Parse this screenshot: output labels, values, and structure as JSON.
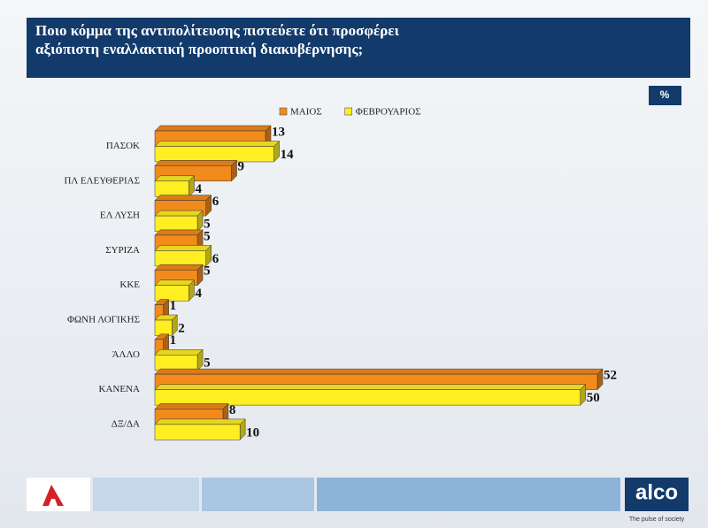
{
  "chart_data": {
    "type": "bar",
    "orientation": "horizontal",
    "title": "Ποιο κόμμα της αντιπολίτευσης πιστεύετε ότι προσφέρει αξιόπιστη εναλλακτική προοπτική διακυβέρνησης;",
    "unit": "%",
    "categories": [
      "ΠΑΣΟΚ",
      "ΠΛ ΕΛΕΥΘΕΡΙΑΣ",
      "ΕΛ ΛΥΣΗ",
      "ΣΥΡΙΖΑ",
      "ΚΚΕ",
      "ΦΩΝΗ ΛΟΓΙΚΗΣ",
      "ΆΛΛΟ",
      "ΚΑΝΕΝΑ",
      "ΔΞ/ΔΑ"
    ],
    "series": [
      {
        "name": "ΜΑΙΟΣ",
        "color": "#f28a1c",
        "values": [
          13,
          9,
          6,
          5,
          5,
          1,
          1,
          52,
          8
        ]
      },
      {
        "name": "ΦΕΒΡΟΥΑΡΙΟΣ",
        "color": "#ffee22",
        "values": [
          14,
          4,
          5,
          6,
          4,
          2,
          5,
          50,
          10
        ]
      }
    ]
  },
  "footer": {
    "brand": "alco",
    "tagline": "The pulse of society"
  }
}
